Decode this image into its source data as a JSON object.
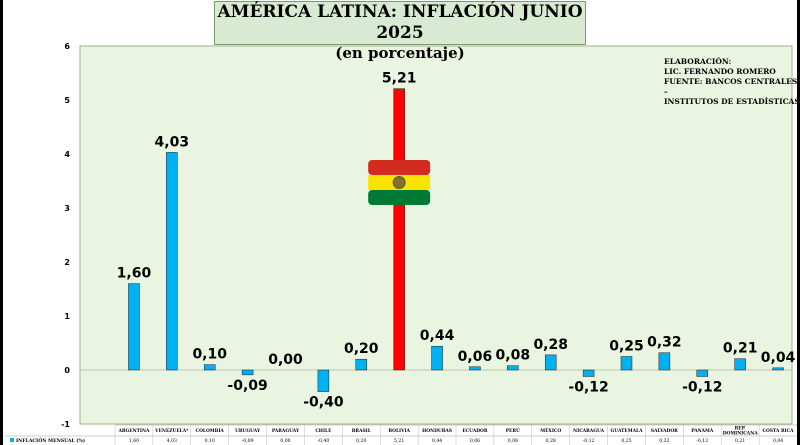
{
  "chart_data": {
    "type": "bar",
    "title": "AMÉRICA LATINA: INFLACIÓN JUNIO 2025",
    "subtitle": "(en porcentaje)",
    "categories": [
      "ARGENTINA",
      "VENEZUELA*",
      "COLOMBIA",
      "URUGUAY",
      "PARAGUAY",
      "CHILE",
      "BRASIL",
      "BOLIVIA",
      "HONDURAS",
      "ECUADOR",
      "PERÚ",
      "MÉXICO",
      "NICARAGUA",
      "GUATEMALA",
      "SALVADOR",
      "PANAMÁ",
      "REP. DOMINICANA",
      "COSTA RICA"
    ],
    "series": [
      {
        "name": "INFLACIÓN MENSUAL (%)",
        "values": [
          1.6,
          4.03,
          0.1,
          -0.09,
          0.0,
          -0.4,
          0.2,
          5.21,
          0.44,
          0.06,
          0.08,
          0.28,
          -0.12,
          0.25,
          0.32,
          -0.12,
          0.21,
          0.04
        ]
      }
    ],
    "labels": [
      "1,60",
      "4,03",
      "0,10",
      "-0,09",
      "0,00",
      "-0,40",
      "0,20",
      "5,21",
      "0,44",
      "0,06",
      "0,08",
      "0,28",
      "-0,12",
      "0,25",
      "0,32",
      "-0,12",
      "0,21",
      "0,04"
    ],
    "ylim": [
      -1,
      6
    ],
    "yticks": [
      "-1",
      "0",
      "1",
      "2",
      "3",
      "4",
      "5",
      "6"
    ],
    "highlight": "BOLIVIA",
    "colors": {
      "bar": "#00b0f0",
      "highlight": "#ff0000",
      "plot_bg": "#e9f4e1"
    },
    "legend": "table-bottom"
  },
  "annotation": [
    "ELABORACIÓN:",
    "LIC. FERNANDO ROMERO",
    "FUENTE: BANCOS CENTRALES –",
    "INSTITUTOS DE ESTADÍSTICAS"
  ]
}
